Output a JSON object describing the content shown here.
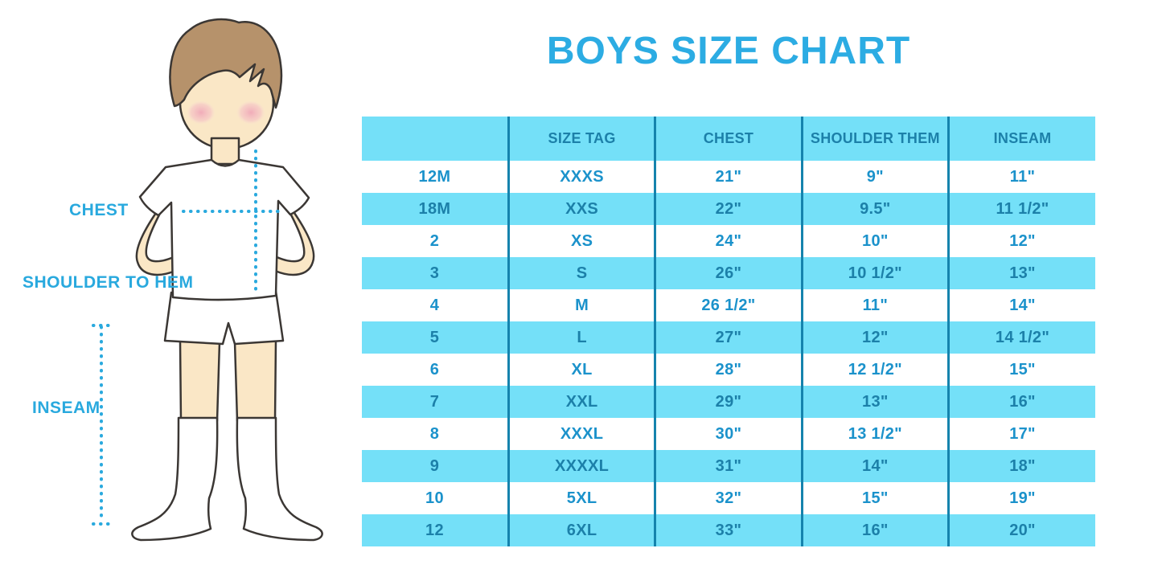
{
  "title": "BOYS SIZE CHART",
  "figure": {
    "illustration": "faceless boy with brown hair, white t-shirt, white shorts and knee socks, hands on hips",
    "labels": {
      "chest": "CHEST",
      "shoulder_to_hem": "SHOULDER TO HEM",
      "inseam": "INSEAM"
    }
  },
  "chart_data": {
    "type": "table",
    "title": "BOYS SIZE CHART",
    "columns": [
      "",
      "SIZE TAG",
      "CHEST",
      "SHOULDER THEM",
      "INSEAM"
    ],
    "rows": [
      [
        "12M",
        "XXXS",
        "21\"",
        "9\"",
        "11\""
      ],
      [
        "18M",
        "XXS",
        "22\"",
        "9.5\"",
        "11 1/2\""
      ],
      [
        "2",
        "XS",
        "24\"",
        "10\"",
        "12\""
      ],
      [
        "3",
        "S",
        "26\"",
        "10 1/2\"",
        "13\""
      ],
      [
        "4",
        "M",
        "26 1/2\"",
        "11\"",
        "14\""
      ],
      [
        "5",
        "L",
        "27\"",
        "12\"",
        "14 1/2\""
      ],
      [
        "6",
        "XL",
        "28\"",
        "12 1/2\"",
        "15\""
      ],
      [
        "7",
        "XXL",
        "29\"",
        "13\"",
        "16\""
      ],
      [
        "8",
        "XXXL",
        "30\"",
        "13 1/2\"",
        "17\""
      ],
      [
        "9",
        "XXXXL",
        "31\"",
        "14\"",
        "18\""
      ],
      [
        "10",
        "5XL",
        "32\"",
        "15\"",
        "19\""
      ],
      [
        "12",
        "6XL",
        "33\"",
        "16\"",
        "20\""
      ]
    ],
    "layout": {
      "row_striping": [
        "white",
        "cyan"
      ],
      "header_background": "cyan",
      "column_dividers": true,
      "horizontal_gridlines": false
    }
  },
  "colors": {
    "title_blue": "#2CACE3",
    "accent_blue": "#29A9DE",
    "band_cyan": "#74E0F8",
    "row_text_blue": "#1B92CB",
    "band_text_blue": "#1C80A9",
    "divider_blue": "#1583AD",
    "skin": "#FAE7C6",
    "hair": "#B6926B",
    "blush": "#F2AEBB",
    "outline": "#3B3734"
  }
}
